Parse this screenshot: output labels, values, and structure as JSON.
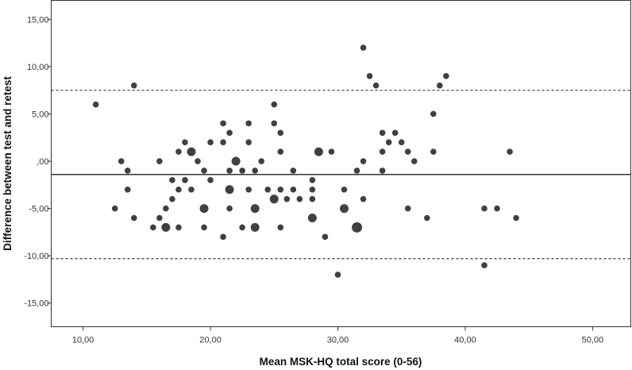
{
  "chart_data": {
    "type": "scatter",
    "title": "",
    "xlabel": "Mean MSK-HQ total score (0-56)",
    "ylabel": "Difference between test and retest",
    "xlim": [
      7.5,
      53
    ],
    "ylim": [
      -17.5,
      17
    ],
    "x_ticks": [
      10,
      20,
      30,
      40,
      50
    ],
    "x_tick_labels": [
      "10,00",
      "20,00",
      "30,00",
      "40,00",
      "50,00"
    ],
    "y_ticks": [
      15,
      10,
      5,
      0,
      -5,
      -10,
      -15
    ],
    "y_tick_labels": [
      "15,00",
      "10,00",
      "5,00",
      ",00",
      "-5,00",
      "-10,00",
      "-15,00"
    ],
    "grid": false,
    "reference_lines": [
      {
        "y": 7.5,
        "style": "dashed"
      },
      {
        "y": -1.4,
        "style": "solid"
      },
      {
        "y": -10.3,
        "style": "dashed"
      }
    ],
    "marker_color": "#404040",
    "line_color": "#333333",
    "series": [
      {
        "points": [
          {
            "x": 11.0,
            "y": 6.0,
            "n": 1
          },
          {
            "x": 12.5,
            "y": -5.0,
            "n": 1
          },
          {
            "x": 13.0,
            "y": 0.0,
            "n": 1
          },
          {
            "x": 13.5,
            "y": -1.0,
            "n": 1
          },
          {
            "x": 13.5,
            "y": -3.0,
            "n": 1
          },
          {
            "x": 14.0,
            "y": 8.0,
            "n": 1
          },
          {
            "x": 14.0,
            "y": -6.0,
            "n": 1
          },
          {
            "x": 15.5,
            "y": -7.0,
            "n": 1
          },
          {
            "x": 16.0,
            "y": 0.0,
            "n": 1
          },
          {
            "x": 16.0,
            "y": -6.0,
            "n": 1
          },
          {
            "x": 16.5,
            "y": -5.0,
            "n": 1
          },
          {
            "x": 16.5,
            "y": -7.0,
            "n": 2
          },
          {
            "x": 17.0,
            "y": -2.0,
            "n": 1
          },
          {
            "x": 17.0,
            "y": -4.0,
            "n": 1
          },
          {
            "x": 17.5,
            "y": 1.0,
            "n": 1
          },
          {
            "x": 17.5,
            "y": -3.0,
            "n": 1
          },
          {
            "x": 17.5,
            "y": -7.0,
            "n": 1
          },
          {
            "x": 18.0,
            "y": 2.0,
            "n": 1
          },
          {
            "x": 18.0,
            "y": -2.0,
            "n": 1
          },
          {
            "x": 18.5,
            "y": 1.0,
            "n": 2
          },
          {
            "x": 18.5,
            "y": -3.0,
            "n": 1
          },
          {
            "x": 19.0,
            "y": 0.0,
            "n": 1
          },
          {
            "x": 19.5,
            "y": -1.0,
            "n": 1
          },
          {
            "x": 19.5,
            "y": -5.0,
            "n": 2
          },
          {
            "x": 19.5,
            "y": -7.0,
            "n": 1
          },
          {
            "x": 20.0,
            "y": 2.0,
            "n": 1
          },
          {
            "x": 20.0,
            "y": -2.0,
            "n": 1
          },
          {
            "x": 21.0,
            "y": 4.0,
            "n": 1
          },
          {
            "x": 21.0,
            "y": 2.0,
            "n": 1
          },
          {
            "x": 21.0,
            "y": -8.0,
            "n": 1
          },
          {
            "x": 21.5,
            "y": 3.0,
            "n": 1
          },
          {
            "x": 21.5,
            "y": -1.0,
            "n": 1
          },
          {
            "x": 21.5,
            "y": -3.0,
            "n": 2
          },
          {
            "x": 21.5,
            "y": -5.0,
            "n": 1
          },
          {
            "x": 22.0,
            "y": 0.0,
            "n": 2
          },
          {
            "x": 22.5,
            "y": -1.0,
            "n": 1
          },
          {
            "x": 22.5,
            "y": -7.0,
            "n": 1
          },
          {
            "x": 23.0,
            "y": 4.0,
            "n": 1
          },
          {
            "x": 23.0,
            "y": 2.0,
            "n": 1
          },
          {
            "x": 23.0,
            "y": -3.0,
            "n": 1
          },
          {
            "x": 23.5,
            "y": -1.0,
            "n": 1
          },
          {
            "x": 23.5,
            "y": -5.0,
            "n": 2
          },
          {
            "x": 23.5,
            "y": -7.0,
            "n": 2
          },
          {
            "x": 24.0,
            "y": 0.0,
            "n": 1
          },
          {
            "x": 24.5,
            "y": -3.0,
            "n": 1
          },
          {
            "x": 25.0,
            "y": 6.0,
            "n": 1
          },
          {
            "x": 25.0,
            "y": 4.0,
            "n": 1
          },
          {
            "x": 25.0,
            "y": -4.0,
            "n": 2
          },
          {
            "x": 25.5,
            "y": 3.0,
            "n": 1
          },
          {
            "x": 25.5,
            "y": 1.0,
            "n": 1
          },
          {
            "x": 25.5,
            "y": -3.0,
            "n": 1
          },
          {
            "x": 25.5,
            "y": -7.0,
            "n": 1
          },
          {
            "x": 26.0,
            "y": -4.0,
            "n": 1
          },
          {
            "x": 26.5,
            "y": -1.0,
            "n": 1
          },
          {
            "x": 26.5,
            "y": -3.0,
            "n": 1
          },
          {
            "x": 27.0,
            "y": -4.0,
            "n": 1
          },
          {
            "x": 28.0,
            "y": -2.0,
            "n": 1
          },
          {
            "x": 28.0,
            "y": -3.0,
            "n": 1
          },
          {
            "x": 28.0,
            "y": -4.0,
            "n": 1
          },
          {
            "x": 28.0,
            "y": -6.0,
            "n": 2
          },
          {
            "x": 28.5,
            "y": 1.0,
            "n": 2
          },
          {
            "x": 29.0,
            "y": -8.0,
            "n": 1
          },
          {
            "x": 29.5,
            "y": 1.0,
            "n": 1
          },
          {
            "x": 30.0,
            "y": -12.0,
            "n": 1
          },
          {
            "x": 30.5,
            "y": -3.0,
            "n": 1
          },
          {
            "x": 30.5,
            "y": -5.0,
            "n": 2
          },
          {
            "x": 31.5,
            "y": -1.0,
            "n": 1
          },
          {
            "x": 31.5,
            "y": -7.0,
            "n": 3
          },
          {
            "x": 32.0,
            "y": 12.0,
            "n": 1
          },
          {
            "x": 32.0,
            "y": 0.0,
            "n": 1
          },
          {
            "x": 32.0,
            "y": -4.0,
            "n": 1
          },
          {
            "x": 32.5,
            "y": 9.0,
            "n": 1
          },
          {
            "x": 33.0,
            "y": 8.0,
            "n": 1
          },
          {
            "x": 33.5,
            "y": 3.0,
            "n": 1
          },
          {
            "x": 33.5,
            "y": 1.0,
            "n": 1
          },
          {
            "x": 33.5,
            "y": -1.0,
            "n": 1
          },
          {
            "x": 34.0,
            "y": 2.0,
            "n": 1
          },
          {
            "x": 34.5,
            "y": 3.0,
            "n": 1
          },
          {
            "x": 35.0,
            "y": 2.0,
            "n": 1
          },
          {
            "x": 35.5,
            "y": 1.0,
            "n": 1
          },
          {
            "x": 35.5,
            "y": -5.0,
            "n": 1
          },
          {
            "x": 36.0,
            "y": 0.0,
            "n": 1
          },
          {
            "x": 37.0,
            "y": -6.0,
            "n": 1
          },
          {
            "x": 37.5,
            "y": 5.0,
            "n": 1
          },
          {
            "x": 37.5,
            "y": 1.0,
            "n": 1
          },
          {
            "x": 38.0,
            "y": 8.0,
            "n": 1
          },
          {
            "x": 38.5,
            "y": 9.0,
            "n": 1
          },
          {
            "x": 41.5,
            "y": -5.0,
            "n": 1
          },
          {
            "x": 41.5,
            "y": -11.0,
            "n": 1
          },
          {
            "x": 42.5,
            "y": -5.0,
            "n": 1
          },
          {
            "x": 43.5,
            "y": 1.0,
            "n": 1
          },
          {
            "x": 44.0,
            "y": -6.0,
            "n": 1
          }
        ]
      }
    ]
  }
}
